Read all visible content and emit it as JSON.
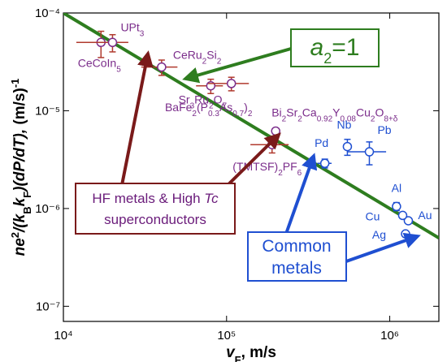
{
  "chart_data": {
    "type": "scatter",
    "log_x": true,
    "log_y": true,
    "xlim": [
      10000,
      2000000
    ],
    "ylim": [
      7e-08,
      0.0001
    ],
    "xticks": [
      {
        "value": 10000,
        "label": "10⁴"
      },
      {
        "value": 100000,
        "label": "10⁵"
      },
      {
        "value": 1000000,
        "label": "10⁶"
      }
    ],
    "yticks": [
      {
        "value": 1e-07,
        "label": "10⁻⁷"
      },
      {
        "value": 1e-06,
        "label": "10⁻⁶"
      },
      {
        "value": 1e-05,
        "label": "10⁻⁵"
      },
      {
        "value": 0.0001,
        "label": "10⁻⁴"
      }
    ],
    "x_label": [
      {
        "text": "v",
        "style": "italic"
      },
      {
        "text": "F",
        "style": "sub"
      },
      {
        "text": ", m/s",
        "style": "normal"
      }
    ],
    "y_label": [
      {
        "text": "ne",
        "style": "italic"
      },
      {
        "text": "2",
        "style": "sup"
      },
      {
        "text": "/(k",
        "style": "italic"
      },
      {
        "text": "B",
        "style": "sub"
      },
      {
        "text": "k",
        "style": "italic"
      },
      {
        "text": "F",
        "style": "sub"
      },
      {
        "text": ")(dP/dT), ",
        "style": "italic"
      },
      {
        "text": "(m/s)",
        "style": "normal"
      },
      {
        "text": "-1",
        "style": "sup"
      }
    ],
    "fit_line": {
      "x": [
        10000,
        2000000
      ],
      "values": [
        0.0001,
        5e-07
      ],
      "color": "#2e7d1f"
    },
    "series": [
      {
        "color": "#7b2d8b",
        "error_color": "#b03a2e",
        "x": [
          17000,
          20000,
          40000,
          80000,
          107000,
          200000,
          190000
        ],
        "values": [
          5e-05,
          5e-05,
          2.8e-05,
          1.8e-05,
          1.9e-05,
          6.2e-06,
          4.5e-06
        ],
        "xerr": [
          5000,
          5000,
          10000,
          15000,
          30000,
          null,
          50000
        ],
        "yerr": [
          1.5e-05,
          1e-05,
          5e-06,
          3e-06,
          3e-06,
          null,
          8e-07
        ],
        "labels": [
          [
            {
              "text": "CeCoIn",
              "style": "normal"
            },
            {
              "text": "5",
              "style": "sub"
            }
          ],
          [
            {
              "text": "UPt",
              "style": "normal"
            },
            {
              "text": "3",
              "style": "sub"
            }
          ],
          [
            {
              "text": "CeRu",
              "style": "normal"
            },
            {
              "text": "2",
              "style": "sub"
            },
            {
              "text": "Si",
              "style": "normal"
            },
            {
              "text": "2",
              "style": "sub"
            }
          ],
          [
            {
              "text": "Sr",
              "style": "normal"
            },
            {
              "text": "3",
              "style": "sub"
            },
            {
              "text": "Ru",
              "style": "normal"
            },
            {
              "text": "2",
              "style": "sub"
            },
            {
              "text": "O",
              "style": "normal"
            },
            {
              "text": "7",
              "style": "sub"
            }
          ],
          [
            {
              "text": "BaFe",
              "style": "normal"
            },
            {
              "text": "2",
              "style": "sub"
            },
            {
              "text": "(P",
              "style": "normal"
            },
            {
              "text": "0.3",
              "style": "sub"
            },
            {
              "text": "As",
              "style": "normal"
            },
            {
              "text": "0.7",
              "style": "sub"
            },
            {
              "text": ")",
              "style": "normal"
            },
            {
              "text": "2",
              "style": "sub"
            }
          ],
          [
            {
              "text": "Bi",
              "style": "normal"
            },
            {
              "text": "2",
              "style": "sub"
            },
            {
              "text": "Sr",
              "style": "normal"
            },
            {
              "text": "2",
              "style": "sub"
            },
            {
              "text": "Ca",
              "style": "normal"
            },
            {
              "text": "0.92",
              "style": "sub"
            },
            {
              "text": "Y",
              "style": "normal"
            },
            {
              "text": "0.08",
              "style": "sub"
            },
            {
              "text": "Cu",
              "style": "normal"
            },
            {
              "text": "2",
              "style": "sub"
            },
            {
              "text": "O",
              "style": "normal"
            },
            {
              "text": "8+δ",
              "style": "sub"
            }
          ],
          [
            {
              "text": "(TMTSF)",
              "style": "normal"
            },
            {
              "text": "2",
              "style": "sub"
            },
            {
              "text": "PF",
              "style": "normal"
            },
            {
              "text": "6",
              "style": "sub"
            }
          ]
        ]
      },
      {
        "color": "#1f4fd1",
        "error_color": "#1f4fd1",
        "x": [
          400000,
          550000,
          750000,
          1100000,
          1300000,
          1200000,
          1250000
        ],
        "values": [
          2.9e-06,
          4.3e-06,
          3.8e-06,
          1.05e-06,
          7.5e-07,
          8.5e-07,
          5.5e-07
        ],
        "xerr": [
          40000,
          null,
          200000,
          null,
          null,
          null,
          null
        ],
        "yerr": [
          3e-07,
          8e-07,
          1e-06,
          1e-07,
          null,
          null,
          null
        ],
        "labels": [
          [
            {
              "text": "Pd",
              "style": "normal"
            }
          ],
          [
            {
              "text": "Nb",
              "style": "normal"
            }
          ],
          [
            {
              "text": "Pb",
              "style": "normal"
            }
          ],
          [
            {
              "text": "Al",
              "style": "normal"
            }
          ],
          [
            {
              "text": "Au",
              "style": "normal"
            }
          ],
          [
            {
              "text": "Cu",
              "style": "normal"
            }
          ],
          [
            {
              "text": "Ag",
              "style": "normal"
            }
          ]
        ]
      }
    ],
    "annotations": {
      "a2": [
        {
          "text": "a",
          "style": "italic"
        },
        {
          "text": "2",
          "style": "sub"
        },
        {
          "text": "=1",
          "style": "normal"
        }
      ],
      "hf_line1": [
        {
          "text": "HF metals & High ",
          "style": "normal"
        },
        {
          "text": "Tc",
          "style": "italic"
        }
      ],
      "hf_line2": "superconductors",
      "common_line1": "Common",
      "common_line2": "metals"
    }
  }
}
